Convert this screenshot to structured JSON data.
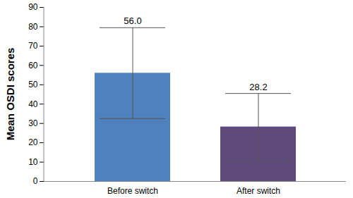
{
  "chart_data": {
    "type": "bar",
    "y_label": "Mean OSDI scores",
    "categories": [
      "Before switch",
      "After switch"
    ],
    "values": [
      56.0,
      28.2
    ],
    "value_labels": [
      "56.0",
      "28.2"
    ],
    "errors": [
      23.5,
      17.3
    ],
    "colors": [
      "#4f81bd",
      "#604a7b"
    ],
    "ylim": [
      0,
      90
    ],
    "yticks": [
      0,
      10,
      20,
      30,
      40,
      50,
      60,
      70,
      80,
      90
    ],
    "grid": false,
    "data_labels": true
  }
}
